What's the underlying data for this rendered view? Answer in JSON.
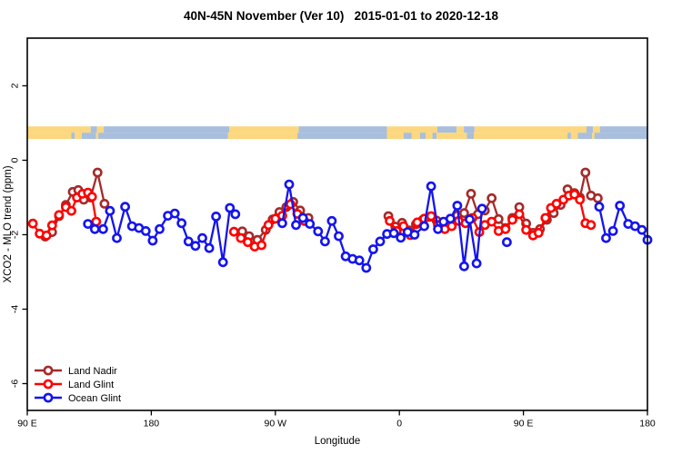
{
  "title": "40N-45N November (Ver 10)   2015-01-01 to 2020-12-18",
  "chart_data": {
    "type": "line",
    "title": "40N-45N November (Ver 10)   2015-01-01 to 2020-12-18",
    "xlabel": "Longitude",
    "ylabel": "XCO2 - MLO trend (ppm)",
    "grid": false,
    "x_axis": {
      "lim": [
        90,
        540
      ],
      "ticks": [
        90,
        180,
        270,
        360,
        450,
        540
      ],
      "tick_labels": [
        "90 E",
        "180",
        "90 W",
        "0",
        "90 E",
        "180"
      ]
    },
    "y_axis": {
      "lim": [
        -6.72,
        3.28
      ],
      "ticks": [
        2,
        0,
        -2,
        -4,
        -6
      ],
      "tick_labels": [
        "2",
        "0",
        "-2",
        "-4",
        "-6"
      ]
    },
    "map_strip": {
      "description": "40N-45N land/ocean coastline strip drawn across the plot near y=0.75",
      "value_range": [
        0.57,
        0.91
      ],
      "land_color": "#FBD77F",
      "ocean_color": "#A8BEDC",
      "rows": [
        {
          "segments": [
            [
              90,
              136,
              "land"
            ],
            [
              136,
              140.5,
              "ocean"
            ],
            [
              140.5,
              145.5,
              "land"
            ],
            [
              145.5,
              236.5,
              "ocean"
            ],
            [
              236.5,
              287,
              "land"
            ],
            [
              287,
              351,
              "ocean"
            ],
            [
              351,
              387.5,
              "land"
            ],
            [
              387.5,
              401.5,
              "ocean"
            ],
            [
              401.5,
              406.8,
              "land"
            ],
            [
              406.8,
              414.5,
              "ocean"
            ],
            [
              414.5,
              495.8,
              "land"
            ],
            [
              495.8,
              500.5,
              "ocean"
            ],
            [
              500.5,
              505.5,
              "land"
            ],
            [
              505.5,
              540,
              "ocean"
            ]
          ]
        },
        {
          "segments": [
            [
              90,
              122,
              "land"
            ],
            [
              122,
              124.5,
              "ocean"
            ],
            [
              124.5,
              129.5,
              "land"
            ],
            [
              129.5,
              139.8,
              "ocean"
            ],
            [
              139.8,
              141.5,
              "land"
            ],
            [
              141.5,
              235.5,
              "ocean"
            ],
            [
              235.5,
              286,
              "land"
            ],
            [
              286,
              351,
              "ocean"
            ],
            [
              351,
              363,
              "land"
            ],
            [
              363,
              369,
              "ocean"
            ],
            [
              369,
              375,
              "land"
            ],
            [
              375,
              379,
              "ocean"
            ],
            [
              379,
              384,
              "land"
            ],
            [
              384,
              387,
              "ocean"
            ],
            [
              387,
              409,
              "land"
            ],
            [
              409,
              414,
              "ocean"
            ],
            [
              414,
              482,
              "land"
            ],
            [
              482,
              484.5,
              "ocean"
            ],
            [
              484.5,
              489.5,
              "land"
            ],
            [
              489.5,
              499.8,
              "ocean"
            ],
            [
              499.8,
              501.5,
              "land"
            ],
            [
              501.5,
              540,
              "ocean"
            ]
          ]
        }
      ]
    },
    "series": [
      {
        "name": "Land Nadir",
        "color": "#A52A2A",
        "segments": [
          [
            [
              103,
              -2.05
            ],
            [
              108,
              -1.93
            ],
            [
              113,
              -1.5
            ],
            [
              118,
              -1.2
            ],
            [
              123,
              -0.85
            ],
            [
              127,
              -0.8
            ],
            [
              131,
              -1.06
            ],
            [
              136,
              -1.0
            ],
            [
              141,
              -0.33
            ],
            [
              146,
              -1.17
            ]
          ],
          [
            [
              246,
              -1.91
            ],
            [
              251,
              -2.04
            ],
            [
              257,
              -2.14
            ],
            [
              263,
              -1.87
            ],
            [
              268,
              -1.59
            ],
            [
              273,
              -1.39
            ],
            [
              278,
              -1.26
            ],
            [
              283,
              -1.12
            ],
            [
              288,
              -1.35
            ],
            [
              294,
              -1.55
            ]
          ],
          [
            [
              352,
              -1.5
            ],
            [
              357,
              -1.78
            ],
            [
              362,
              -1.68
            ],
            [
              367,
              -1.88
            ],
            [
              372,
              -1.72
            ],
            [
              377,
              -1.6
            ],
            [
              382,
              -1.52
            ],
            [
              387,
              -1.62
            ],
            [
              392,
              -1.72
            ],
            [
              397,
              -1.58
            ],
            [
              402,
              -1.48
            ],
            [
              407,
              -1.42
            ],
            [
              412,
              -0.9
            ],
            [
              417,
              -1.45
            ],
            [
              422,
              -1.35
            ],
            [
              427,
              -1.02
            ],
            [
              432,
              -1.58
            ],
            [
              437,
              -1.82
            ],
            [
              442,
              -1.55
            ],
            [
              447,
              -1.26
            ],
            [
              452,
              -1.7
            ],
            [
              457,
              -1.95
            ],
            [
              462,
              -1.85
            ],
            [
              467,
              -1.6
            ],
            [
              472,
              -1.42
            ],
            [
              477,
              -1.2
            ],
            [
              482,
              -0.78
            ],
            [
              487,
              -0.88
            ],
            [
              491,
              -1.0
            ],
            [
              495,
              -0.33
            ],
            [
              499,
              -0.95
            ],
            [
              504,
              -1.02
            ]
          ]
        ]
      },
      {
        "name": "Land Glint",
        "color": "#FF0000",
        "segments": [
          [
            [
              94,
              -1.7
            ],
            [
              99,
              -1.97
            ],
            [
              104,
              -2.02
            ],
            [
              108,
              -1.75
            ],
            [
              113,
              -1.47
            ],
            [
              118,
              -1.26
            ],
            [
              122,
              -1.36
            ],
            [
              126,
              -1.0
            ],
            [
              130,
              -0.9
            ],
            [
              134,
              -0.87
            ],
            [
              137,
              -0.98
            ],
            [
              140,
              -1.65
            ]
          ],
          [
            [
              240,
              -1.92
            ],
            [
              245,
              -2.09
            ],
            [
              250,
              -2.2
            ],
            [
              255,
              -2.32
            ],
            [
              260,
              -2.28
            ],
            [
              265,
              -1.74
            ],
            [
              270,
              -1.57
            ],
            [
              275,
              -1.49
            ],
            [
              281,
              -1.18
            ],
            [
              286,
              -1.44
            ],
            [
              291,
              -1.63
            ]
          ],
          [
            [
              353,
              -1.63
            ],
            [
              358,
              -1.9
            ],
            [
              363,
              -1.77
            ],
            [
              368,
              -2.01
            ],
            [
              373,
              -1.67
            ],
            [
              378,
              -1.57
            ],
            [
              383,
              -1.5
            ],
            [
              388,
              -1.74
            ],
            [
              393,
              -1.85
            ],
            [
              398,
              -1.77
            ],
            [
              403,
              -1.63
            ],
            [
              408,
              -1.69
            ],
            [
              413,
              -1.55
            ],
            [
              418,
              -1.93
            ],
            [
              422,
              -1.74
            ],
            [
              427,
              -1.65
            ],
            [
              432,
              -1.9
            ],
            [
              437,
              -1.85
            ],
            [
              442,
              -1.6
            ],
            [
              447,
              -1.45
            ],
            [
              452,
              -1.87
            ],
            [
              457,
              -2.02
            ],
            [
              461,
              -1.95
            ],
            [
              466,
              -1.55
            ],
            [
              470,
              -1.28
            ],
            [
              474,
              -1.17
            ],
            [
              479,
              -1.06
            ],
            [
              483,
              -0.95
            ],
            [
              487,
              -0.92
            ],
            [
              491,
              -1.06
            ],
            [
              495,
              -1.69
            ],
            [
              499,
              -1.74
            ]
          ]
        ]
      },
      {
        "name": "Ocean Glint",
        "color": "#1414EE",
        "segments": [
          [
            [
              134,
              -1.71
            ],
            [
              139,
              -1.85
            ],
            [
              145,
              -1.85
            ],
            [
              150,
              -1.36
            ],
            [
              155,
              -2.09
            ],
            [
              161,
              -1.25
            ],
            [
              166,
              -1.77
            ],
            [
              171,
              -1.82
            ],
            [
              176,
              -1.9
            ],
            [
              181,
              -2.16
            ],
            [
              186,
              -1.85
            ],
            [
              192,
              -1.49
            ],
            [
              197,
              -1.43
            ],
            [
              202,
              -1.69
            ],
            [
              207,
              -2.18
            ],
            [
              212,
              -2.3
            ],
            [
              217,
              -2.09
            ],
            [
              222,
              -2.36
            ],
            [
              227,
              -1.51
            ],
            [
              232,
              -2.74
            ],
            [
              237,
              -1.28
            ],
            [
              241,
              -1.45
            ]
          ],
          [
            [
              275,
              -1.69
            ],
            [
              280,
              -0.65
            ],
            [
              285,
              -1.74
            ]
          ],
          [
            [
              290,
              -1.55
            ],
            [
              295,
              -1.71
            ],
            [
              301,
              -1.91
            ],
            [
              306,
              -2.18
            ],
            [
              311,
              -1.63
            ],
            [
              316,
              -2.04
            ],
            [
              321,
              -2.58
            ],
            [
              326,
              -2.65
            ],
            [
              331,
              -2.69
            ],
            [
              336,
              -2.89
            ],
            [
              341,
              -2.39
            ],
            [
              346,
              -2.18
            ],
            [
              351,
              -1.98
            ],
            [
              356,
              -1.96
            ],
            [
              361,
              -2.08
            ],
            [
              366,
              -1.93
            ],
            [
              371,
              -2.0
            ],
            [
              378,
              -1.77
            ],
            [
              383,
              -0.7
            ],
            [
              388,
              -1.85
            ],
            [
              392,
              -1.65
            ],
            [
              397,
              -1.57
            ],
            [
              402,
              -1.22
            ],
            [
              407,
              -2.85
            ],
            [
              411,
              -1.59
            ],
            [
              416,
              -2.77
            ],
            [
              420,
              -1.3
            ]
          ],
          [
            [
              438,
              -2.2
            ]
          ],
          [
            [
              505,
              -1.25
            ],
            [
              510,
              -2.09
            ],
            [
              515,
              -1.9
            ],
            [
              520,
              -1.22
            ],
            [
              526,
              -1.71
            ],
            [
              531,
              -1.77
            ],
            [
              536,
              -1.87
            ],
            [
              540,
              -2.14
            ]
          ]
        ]
      }
    ],
    "legend": {
      "position": "bottom-left",
      "items": [
        {
          "label": "Land Nadir",
          "color": "#A52A2A"
        },
        {
          "label": "Land Glint",
          "color": "#FF0000"
        },
        {
          "label": "Ocean Glint",
          "color": "#1414EE"
        }
      ]
    }
  }
}
